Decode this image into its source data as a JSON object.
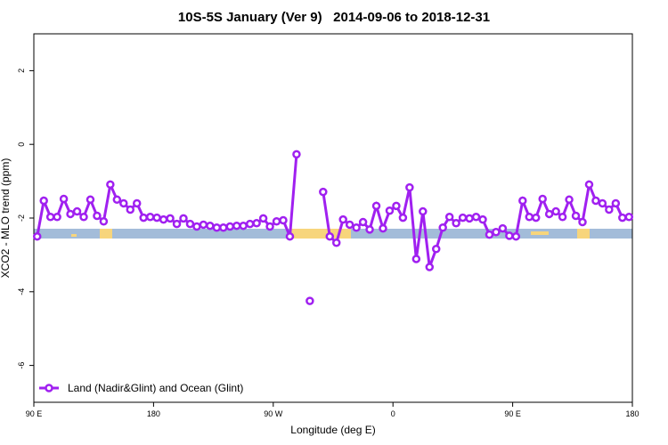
{
  "chart_data": {
    "type": "line",
    "title": "10S-5S January (Ver 9)   2014-09-06 to 2018-12-31",
    "x_label": "Longitude (deg E)",
    "y_label": "XCO2 - MLO trend (ppm)",
    "xlim": [
      90,
      540
    ],
    "xticks": [
      {
        "value": 90,
        "label": "90 E"
      },
      {
        "value": 180,
        "label": "180"
      },
      {
        "value": 270,
        "label": "90 W"
      },
      {
        "value": 360,
        "label": "0"
      },
      {
        "value": 450,
        "label": "90 E"
      },
      {
        "value": 540,
        "label": "180"
      }
    ],
    "ylim": [
      -7,
      3
    ],
    "yticks": [
      -6,
      -4,
      -2,
      0,
      2
    ],
    "legend": "bottom-left",
    "x": [
      92.5,
      97.5,
      102.5,
      107.5,
      112.5,
      117.5,
      122.5,
      127.5,
      132.5,
      137.5,
      142.5,
      147.5,
      152.5,
      157.5,
      162.5,
      167.5,
      172.5,
      177.5,
      182.5,
      187.5,
      192.5,
      197.5,
      202.5,
      207.5,
      212.5,
      217.5,
      222.5,
      227.5,
      232.5,
      237.5,
      242.5,
      247.5,
      252.5,
      257.5,
      262.5,
      267.5,
      272.5,
      277.5,
      282.5,
      287.5,
      292.5,
      297.5,
      302.5,
      307.5,
      312.5,
      317.5,
      322.5,
      327.5,
      332.5,
      337.5,
      342.5,
      347.5,
      352.5,
      357.5,
      362.5,
      367.5,
      372.5,
      377.5,
      382.5,
      387.5,
      392.5,
      397.5,
      402.5,
      407.5,
      412.5,
      417.5,
      422.5,
      427.5,
      432.5,
      437.5,
      442.5,
      447.5,
      452.5,
      457.5,
      462.5,
      467.5,
      472.5,
      477.5,
      482.5,
      487.5,
      492.5,
      497.5,
      502.5,
      507.5,
      512.5,
      517.5,
      522.5,
      527.5,
      532.5,
      537.5
    ],
    "series": [
      {
        "name": "Land (Nadir&Glint) and Ocean (Glint)",
        "color": "#a020f0",
        "values": [
          -2.5,
          -1.53,
          -1.97,
          -1.97,
          -1.48,
          -1.89,
          -1.82,
          -1.97,
          -1.5,
          -1.94,
          -2.09,
          -1.09,
          -1.5,
          -1.6,
          -1.77,
          -1.6,
          -1.99,
          -1.97,
          -1.99,
          -2.04,
          -2.01,
          -2.16,
          -2.01,
          -2.16,
          -2.23,
          -2.18,
          -2.21,
          -2.26,
          -2.26,
          -2.23,
          -2.21,
          -2.21,
          -2.16,
          -2.14,
          -2.01,
          -2.23,
          -2.09,
          -2.06,
          -2.5,
          -0.27,
          null,
          -4.25,
          null,
          -1.29,
          -2.5,
          -2.67,
          -2.04,
          -2.18,
          -2.26,
          -2.11,
          -2.31,
          -1.67,
          -2.28,
          -1.8,
          -1.67,
          -1.99,
          -1.17,
          -3.11,
          -1.82,
          -3.33,
          -2.84,
          -2.26,
          -1.97,
          -2.14,
          -1.99,
          -2.01,
          -1.97,
          -2.04,
          -2.45,
          -2.38,
          -2.28,
          -2.48,
          -2.5,
          -1.53,
          -1.97,
          -1.99,
          -1.48,
          -1.89,
          -1.82,
          -1.97,
          -1.5,
          -1.94,
          -2.11,
          -1.09,
          -1.53,
          -1.6,
          -1.77,
          -1.6,
          -1.99,
          -1.97
        ]
      }
    ]
  }
}
